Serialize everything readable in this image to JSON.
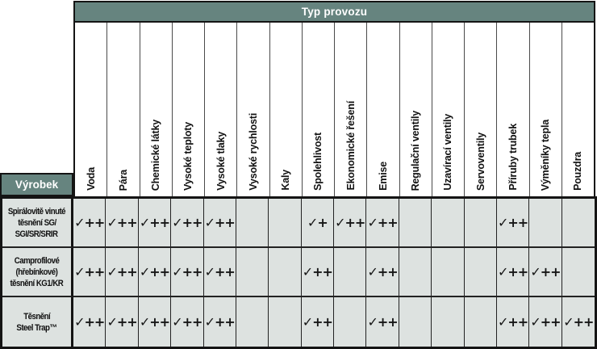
{
  "header": {
    "title": "Typ provozu"
  },
  "products_header": "Výrobek",
  "columns": [
    "Voda",
    "Pára",
    "Chemické látky",
    "Vysoké teploty",
    "Vysoké tlaky",
    "Vysoké rychlosti",
    "Kaly",
    "Spolehlivost",
    "Ekonomické řešení",
    "Emise",
    "Regulační ventily",
    "Uzavírací ventily",
    "Servoventily",
    "Příruby trubek",
    "Výměníky tepla",
    "Pouzdra"
  ],
  "rows": [
    {
      "label": "Spirálovitě vinuté těsnění SG/SGI/SR/SRIR",
      "label_lines": [
        "Spirálovitě vinuté",
        "těsnění SG/",
        "SGI/SR/SRIR"
      ],
      "cells": [
        "✓++",
        "✓++",
        "✓++",
        "✓++",
        "✓++",
        "",
        "",
        "✓+",
        "✓++",
        "✓++",
        "",
        "",
        "",
        "✓++",
        "",
        ""
      ]
    },
    {
      "label": "Camprofilové (hřebínkové) těsnění KG1/KR",
      "label_lines": [
        "Camprofilové",
        "(hřebínkové)",
        "těsnění KG1/KR"
      ],
      "cells": [
        "✓++",
        "✓++",
        "✓++",
        "✓++",
        "✓++",
        "",
        "",
        "✓++",
        "",
        "✓++",
        "",
        "",
        "",
        "✓++",
        "✓++",
        ""
      ]
    },
    {
      "label": "Těsnění Steel Trap™",
      "label_lines": [
        "Těsnění",
        "Steel Trap™"
      ],
      "cells": [
        "✓++",
        "✓++",
        "✓++",
        "✓++",
        "✓++",
        "",
        "",
        "✓++",
        "",
        "✓++",
        "",
        "",
        "",
        "✓++",
        "✓++",
        "✓++"
      ]
    }
  ],
  "colors": {
    "header_teal": "#66847f",
    "cell_background": "#dde2e0",
    "grid_line": "#141414",
    "header_text": "#ffffff"
  }
}
